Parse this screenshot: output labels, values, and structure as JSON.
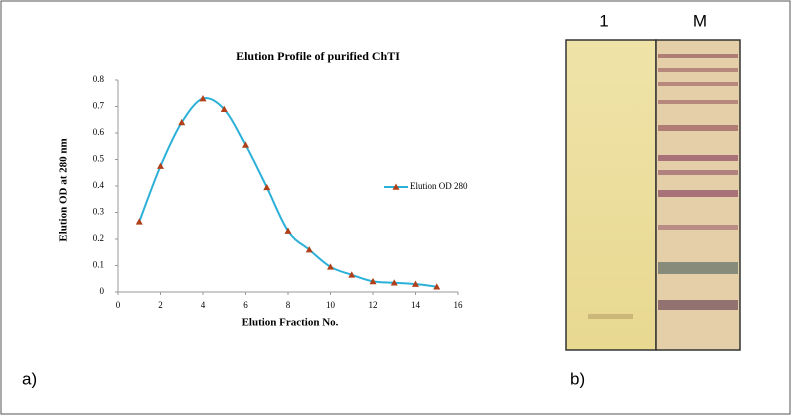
{
  "chart_data": {
    "type": "line",
    "title": "Elution  Profile of purified  ChTI",
    "xlabel": "Elution Fraction No.",
    "ylabel": "Elution OD at 280 nm",
    "x": [
      1,
      2,
      3,
      4,
      5,
      6,
      7,
      8,
      9,
      10,
      11,
      12,
      13,
      14,
      15
    ],
    "series": [
      {
        "name": "Elution OD 280",
        "color": "#2bb0d8",
        "marker_color": "#b0401a",
        "values": [
          0.265,
          0.475,
          0.64,
          0.73,
          0.69,
          0.555,
          0.395,
          0.23,
          0.16,
          0.095,
          0.065,
          0.04,
          0.035,
          0.03,
          0.02
        ]
      }
    ],
    "xlim": [
      0,
      16
    ],
    "xticks": [
      0,
      2,
      4,
      6,
      8,
      10,
      12,
      14,
      16
    ],
    "ylim": [
      0,
      0.8
    ],
    "yticks": [
      0,
      0.1,
      0.2,
      0.3,
      0.4,
      0.5,
      0.6,
      0.7,
      0.8
    ],
    "grid": false,
    "legend": "right"
  },
  "figure": {
    "panel_a": "a)",
    "panel_b": "b)",
    "lanes": [
      "1",
      "M"
    ]
  }
}
